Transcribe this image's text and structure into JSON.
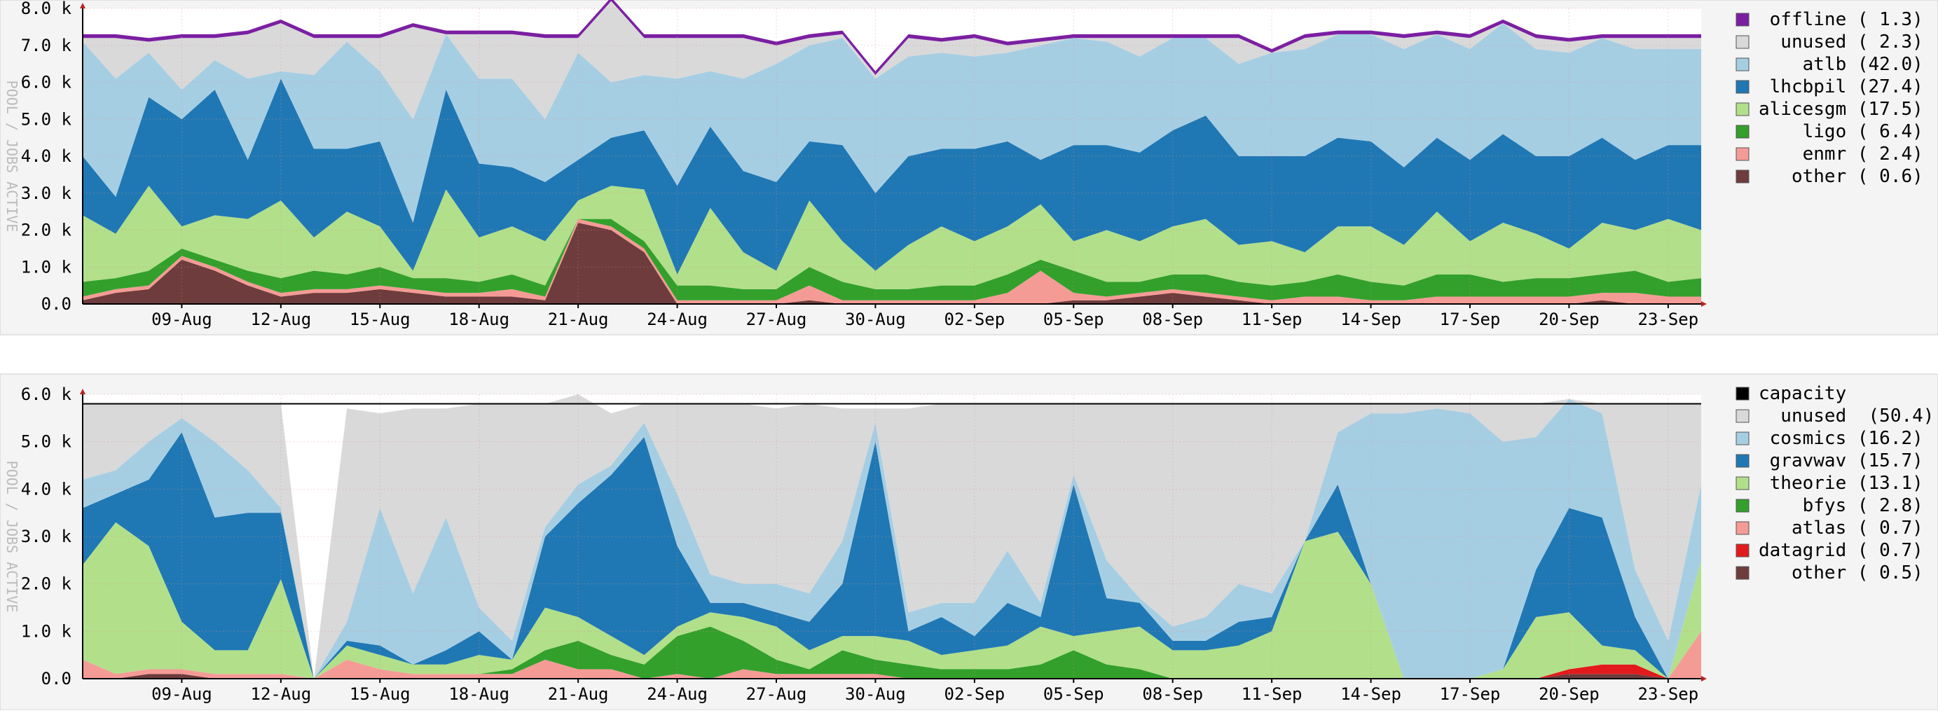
{
  "chart_data": [
    {
      "type": "area",
      "stacked": true,
      "ylabel": "POOL / JOBS ACTIVE",
      "ylim": [
        0,
        8000
      ],
      "yticks": [
        "0.0",
        "1.0 k",
        "2.0 k",
        "3.0 k",
        "4.0 k",
        "5.0 k",
        "6.0 k",
        "7.0 k",
        "8.0 k"
      ],
      "xticks": [
        "09-Aug",
        "12-Aug",
        "15-Aug",
        "18-Aug",
        "21-Aug",
        "24-Aug",
        "27-Aug",
        "30-Aug",
        "02-Sep",
        "05-Sep",
        "08-Sep",
        "11-Sep",
        "14-Sep",
        "17-Sep",
        "20-Sep",
        "23-Sep"
      ],
      "x": [
        "06-Aug",
        "07-Aug",
        "08-Aug",
        "09-Aug",
        "10-Aug",
        "11-Aug",
        "12-Aug",
        "13-Aug",
        "14-Aug",
        "15-Aug",
        "16-Aug",
        "17-Aug",
        "18-Aug",
        "19-Aug",
        "20-Aug",
        "21-Aug",
        "22-Aug",
        "23-Aug",
        "24-Aug",
        "25-Aug",
        "26-Aug",
        "27-Aug",
        "28-Aug",
        "29-Aug",
        "30-Aug",
        "31-Aug",
        "01-Sep",
        "02-Sep",
        "03-Sep",
        "04-Sep",
        "05-Sep",
        "06-Sep",
        "07-Sep",
        "08-Sep",
        "09-Sep",
        "10-Sep",
        "11-Sep",
        "12-Sep",
        "13-Sep",
        "14-Sep",
        "15-Sep",
        "16-Sep",
        "17-Sep",
        "18-Sep",
        "19-Sep",
        "20-Sep",
        "21-Sep",
        "22-Sep",
        "23-Sep",
        "24-Sep"
      ],
      "grid": true,
      "legend_position": "right",
      "series": [
        {
          "name": "other",
          "legend": "   other ( 0.6)",
          "color": "#6e3c3c",
          "values": [
            100,
            300,
            400,
            1200,
            900,
            500,
            200,
            300,
            300,
            400,
            300,
            200,
            200,
            200,
            100,
            2200,
            2000,
            1400,
            0,
            0,
            0,
            0,
            100,
            0,
            0,
            0,
            0,
            0,
            0,
            0,
            100,
            100,
            200,
            300,
            200,
            100,
            0,
            0,
            0,
            0,
            0,
            0,
            0,
            0,
            0,
            0,
            100,
            0,
            0,
            0
          ]
        },
        {
          "name": "enmr",
          "legend": "    enmr ( 2.4)",
          "color": "#f59b96",
          "values": [
            100,
            100,
            100,
            100,
            100,
            100,
            100,
            100,
            100,
            100,
            100,
            100,
            100,
            200,
            100,
            100,
            100,
            100,
            100,
            100,
            100,
            100,
            400,
            100,
            100,
            100,
            100,
            100,
            300,
            900,
            200,
            100,
            100,
            100,
            100,
            100,
            100,
            200,
            200,
            100,
            100,
            200,
            200,
            200,
            200,
            200,
            200,
            300,
            200,
            200
          ]
        },
        {
          "name": "ligo",
          "legend": "    ligo ( 6.4)",
          "color": "#33a02c",
          "values": [
            400,
            300,
            400,
            200,
            200,
            300,
            400,
            500,
            400,
            500,
            300,
            400,
            300,
            400,
            300,
            0,
            200,
            200,
            400,
            400,
            300,
            300,
            500,
            500,
            300,
            300,
            400,
            400,
            500,
            300,
            600,
            400,
            300,
            400,
            500,
            400,
            400,
            400,
            600,
            500,
            400,
            600,
            600,
            400,
            500,
            500,
            500,
            600,
            400,
            500
          ]
        },
        {
          "name": "alicesgm",
          "legend": "alicesgm (17.5)",
          "color": "#b2df8a",
          "values": [
            1800,
            1200,
            2300,
            600,
            1200,
            1400,
            2100,
            900,
            1700,
            1100,
            200,
            2400,
            1200,
            1300,
            1200,
            500,
            900,
            1400,
            300,
            2100,
            1000,
            500,
            1800,
            1100,
            500,
            1200,
            1600,
            1200,
            1300,
            1500,
            800,
            1400,
            1100,
            1300,
            1500,
            1000,
            1200,
            800,
            1300,
            1500,
            1100,
            1700,
            900,
            1600,
            1200,
            800,
            1400,
            1100,
            1700,
            1300
          ]
        },
        {
          "name": "lhcbpil",
          "legend": " lhcbpil (27.4)",
          "color": "#1f78b4",
          "values": [
            1600,
            1000,
            2400,
            2900,
            3400,
            1600,
            3300,
            2400,
            1700,
            2300,
            1300,
            2700,
            2000,
            1600,
            1600,
            1100,
            1300,
            1600,
            2400,
            2200,
            2200,
            2400,
            1600,
            2600,
            2100,
            2400,
            2100,
            2500,
            2300,
            1200,
            2600,
            2300,
            2400,
            2600,
            2800,
            2400,
            2300,
            2600,
            2400,
            2300,
            2100,
            2000,
            2200,
            2400,
            2100,
            2500,
            2300,
            1900,
            2000,
            2300
          ]
        },
        {
          "name": "atlb",
          "legend": "    atlb (42.0)",
          "color": "#a6cee3",
          "values": [
            3100,
            3200,
            1200,
            800,
            800,
            2200,
            200,
            2000,
            2900,
            1900,
            2800,
            1500,
            2300,
            2400,
            1700,
            2900,
            1500,
            1500,
            2900,
            1500,
            2500,
            3200,
            2600,
            2900,
            3100,
            2700,
            2600,
            2500,
            2400,
            3100,
            2900,
            2800,
            2600,
            2500,
            2100,
            2500,
            2800,
            2900,
            2800,
            2900,
            3200,
            2800,
            3000,
            3000,
            2900,
            2800,
            2700,
            3000,
            2600,
            2600
          ]
        },
        {
          "name": "unused",
          "legend": "  unused ( 2.3)",
          "color": "#d9d9d9",
          "values": [
            100,
            1100,
            300,
            1400,
            600,
            1200,
            1300,
            1000,
            100,
            900,
            2500,
            0,
            1200,
            1200,
            2200,
            400,
            2200,
            1000,
            1100,
            900,
            1100,
            500,
            200,
            100,
            100,
            500,
            300,
            500,
            200,
            100,
            0,
            100,
            500,
            0,
            0,
            700,
            0,
            300,
            0,
            0,
            300,
            0,
            300,
            0,
            300,
            300,
            0,
            300,
            300,
            300
          ]
        },
        {
          "name": "offline",
          "legend": " offline ( 1.3)",
          "color": "#7b1fa2",
          "values": [
            100,
            100,
            100,
            100,
            100,
            100,
            100,
            100,
            100,
            100,
            100,
            100,
            100,
            100,
            100,
            100,
            100,
            100,
            100,
            100,
            100,
            100,
            100,
            100,
            100,
            100,
            100,
            100,
            100,
            100,
            100,
            100,
            100,
            100,
            100,
            100,
            100,
            100,
            100,
            100,
            100,
            100,
            100,
            100,
            100,
            100,
            100,
            100,
            100,
            100
          ]
        }
      ]
    },
    {
      "type": "area",
      "stacked": true,
      "ylabel": "POOL / JOBS ACTIVE",
      "ylim": [
        0,
        6000
      ],
      "yticks": [
        "0.0",
        "1.0 k",
        "2.0 k",
        "3.0 k",
        "4.0 k",
        "5.0 k",
        "6.0 k"
      ],
      "xticks": [
        "09-Aug",
        "12-Aug",
        "15-Aug",
        "18-Aug",
        "21-Aug",
        "24-Aug",
        "27-Aug",
        "30-Aug",
        "02-Sep",
        "05-Sep",
        "08-Sep",
        "11-Sep",
        "14-Sep",
        "17-Sep",
        "20-Sep",
        "23-Sep"
      ],
      "x": [
        "06-Aug",
        "07-Aug",
        "08-Aug",
        "09-Aug",
        "10-Aug",
        "11-Aug",
        "12-Aug",
        "13-Aug",
        "14-Aug",
        "15-Aug",
        "16-Aug",
        "17-Aug",
        "18-Aug",
        "19-Aug",
        "20-Aug",
        "21-Aug",
        "22-Aug",
        "23-Aug",
        "24-Aug",
        "25-Aug",
        "26-Aug",
        "27-Aug",
        "28-Aug",
        "29-Aug",
        "30-Aug",
        "31-Aug",
        "01-Sep",
        "02-Sep",
        "03-Sep",
        "04-Sep",
        "05-Sep",
        "06-Sep",
        "07-Sep",
        "08-Sep",
        "09-Sep",
        "10-Sep",
        "11-Sep",
        "12-Sep",
        "13-Sep",
        "14-Sep",
        "15-Sep",
        "16-Sep",
        "17-Sep",
        "18-Sep",
        "19-Sep",
        "20-Sep",
        "21-Sep",
        "22-Sep",
        "23-Sep",
        "24-Sep"
      ],
      "grid": true,
      "legend_position": "right",
      "capacity": 5800,
      "capacity_legend": "capacity",
      "capacity_color": "#000000",
      "series": [
        {
          "name": "other",
          "legend": "   other ( 0.5)",
          "color": "#6e3c3c",
          "values": [
            0,
            0,
            100,
            100,
            0,
            0,
            0,
            0,
            0,
            0,
            0,
            0,
            0,
            0,
            0,
            0,
            0,
            0,
            0,
            0,
            0,
            0,
            0,
            0,
            0,
            0,
            0,
            0,
            0,
            0,
            0,
            0,
            0,
            0,
            0,
            0,
            0,
            0,
            0,
            0,
            0,
            0,
            0,
            0,
            0,
            100,
            100,
            100,
            0,
            0
          ]
        },
        {
          "name": "datagrid",
          "legend": "datagrid ( 0.7)",
          "color": "#e31a1c",
          "values": [
            0,
            0,
            0,
            0,
            0,
            0,
            0,
            0,
            0,
            0,
            0,
            0,
            0,
            0,
            0,
            0,
            0,
            0,
            0,
            0,
            0,
            0,
            0,
            0,
            0,
            0,
            0,
            0,
            0,
            0,
            0,
            0,
            0,
            0,
            0,
            0,
            0,
            0,
            0,
            0,
            0,
            0,
            0,
            0,
            0,
            100,
            200,
            200,
            0,
            0
          ]
        },
        {
          "name": "atlas",
          "legend": "   atlas ( 0.7)",
          "color": "#f59b96",
          "values": [
            400,
            100,
            100,
            100,
            100,
            100,
            100,
            0,
            400,
            200,
            100,
            100,
            100,
            100,
            400,
            200,
            200,
            0,
            100,
            0,
            200,
            100,
            100,
            100,
            100,
            0,
            0,
            0,
            0,
            0,
            0,
            0,
            0,
            0,
            0,
            0,
            0,
            0,
            0,
            0,
            0,
            0,
            0,
            0,
            0,
            0,
            0,
            0,
            0,
            1000
          ]
        },
        {
          "name": "bfys",
          "legend": "    bfys ( 2.8)",
          "color": "#33a02c",
          "values": [
            0,
            0,
            0,
            0,
            0,
            0,
            0,
            0,
            0,
            0,
            0,
            0,
            0,
            100,
            200,
            600,
            300,
            300,
            800,
            1100,
            600,
            300,
            100,
            500,
            300,
            300,
            200,
            200,
            200,
            300,
            600,
            300,
            200,
            0,
            0,
            0,
            0,
            0,
            0,
            0,
            0,
            0,
            0,
            0,
            0,
            0,
            0,
            0,
            0,
            0
          ]
        },
        {
          "name": "theorie",
          "legend": " theorie (13.1)",
          "color": "#b2df8a",
          "values": [
            2000,
            3200,
            2600,
            1000,
            500,
            500,
            2000,
            0,
            300,
            300,
            200,
            200,
            400,
            200,
            900,
            500,
            400,
            200,
            200,
            300,
            500,
            700,
            400,
            300,
            500,
            500,
            300,
            400,
            500,
            800,
            300,
            700,
            900,
            600,
            600,
            700,
            1000,
            2900,
            3100,
            2000,
            0,
            0,
            0,
            200,
            1300,
            1200,
            400,
            300,
            0,
            1500
          ]
        },
        {
          "name": "gravwav",
          "legend": " gravwav (15.7)",
          "color": "#1f78b4",
          "values": [
            1200,
            600,
            1400,
            4000,
            2800,
            2900,
            1400,
            0,
            100,
            200,
            0,
            300,
            500,
            0,
            1500,
            2400,
            3400,
            4600,
            1700,
            200,
            300,
            300,
            600,
            1100,
            4100,
            200,
            800,
            300,
            900,
            200,
            3200,
            700,
            500,
            200,
            200,
            500,
            300,
            0,
            1000,
            0,
            0,
            0,
            0,
            0,
            1000,
            2200,
            2700,
            700,
            0,
            0
          ]
        },
        {
          "name": "cosmics",
          "legend": " cosmics (16.2)",
          "color": "#a6cee3",
          "values": [
            600,
            500,
            800,
            300,
            1600,
            900,
            100,
            0,
            400,
            2900,
            1500,
            2800,
            500,
            400,
            200,
            400,
            200,
            300,
            1100,
            600,
            400,
            600,
            600,
            900,
            400,
            400,
            300,
            700,
            1100,
            300,
            200,
            800,
            100,
            300,
            500,
            800,
            500,
            0,
            1100,
            3600,
            5600,
            5700,
            5600,
            4800,
            2800,
            2300,
            2200,
            1000,
            800,
            1600
          ]
        },
        {
          "name": "unused",
          "legend": "  unused  (50.4)",
          "color": "#d9d9d9",
          "values": [
            1600,
            1400,
            800,
            300,
            800,
            1400,
            2200,
            0,
            4500,
            2000,
            3900,
            2300,
            4300,
            5000,
            2600,
            1900,
            1100,
            400,
            1900,
            3600,
            3800,
            3700,
            4000,
            2800,
            300,
            4300,
            4200,
            4200,
            3100,
            4200,
            1500,
            3300,
            4100,
            4700,
            4500,
            3800,
            4000,
            2900,
            600,
            200,
            200,
            100,
            200,
            800,
            700,
            0,
            200,
            3500,
            5000,
            1700
          ]
        }
      ]
    }
  ]
}
